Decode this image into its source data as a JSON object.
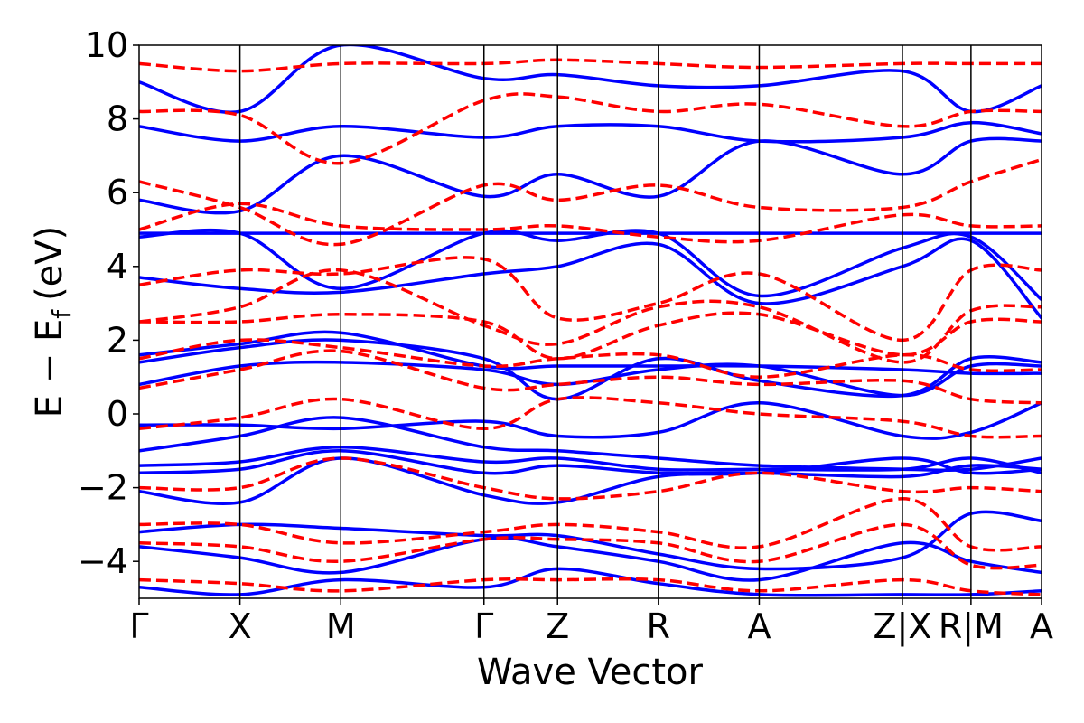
{
  "chart_data": {
    "type": "line",
    "xlabel": "Wave Vector",
    "ylabel": "E − E",
    "ylabel_sub": "f",
    "ylabel_unit": "(eV)",
    "ylim": [
      -5,
      10
    ],
    "yticks": [
      {
        "value": 10,
        "label": "10"
      },
      {
        "value": 8,
        "label": "8"
      },
      {
        "value": 6,
        "label": "6"
      },
      {
        "value": 4,
        "label": "4"
      },
      {
        "value": 2,
        "label": "2"
      },
      {
        "value": 0,
        "label": "0"
      },
      {
        "value": -2,
        "label": "−2"
      },
      {
        "value": -4,
        "label": "−4"
      }
    ],
    "kpoints": [
      {
        "label": "Γ",
        "pos": 0.0
      },
      {
        "label": "X",
        "pos": 1.0
      },
      {
        "label": "M",
        "pos": 2.0
      },
      {
        "label": "Γ",
        "pos": 3.42
      },
      {
        "label": "Z",
        "pos": 4.15
      },
      {
        "label": "R",
        "pos": 5.15
      },
      {
        "label": "A",
        "pos": 6.15
      },
      {
        "label": "Z|X",
        "pos": 7.57
      },
      {
        "label": "R|M",
        "pos": 8.25
      },
      {
        "label": "A",
        "pos": 8.95
      }
    ],
    "grid": false,
    "series": [
      {
        "style": "solid",
        "color": "#0000ff",
        "bands": [
          [
            -1.0,
            -0.6,
            -0.1,
            -0.9,
            -1.0,
            -1.2,
            -1.4,
            -1.5,
            -1.5,
            -1.2
          ],
          [
            -1.4,
            -1.3,
            -0.9,
            -1.3,
            -1.2,
            -1.5,
            -1.5,
            -1.5,
            -1.2,
            -1.6
          ],
          [
            -1.6,
            -1.5,
            -1.0,
            -1.6,
            -1.4,
            -1.6,
            -1.6,
            -1.7,
            -1.4,
            -1.5
          ],
          [
            -2.1,
            -2.4,
            -1.2,
            -2.2,
            -2.4,
            -1.7,
            -1.6,
            -1.2,
            -1.6,
            -1.5
          ],
          [
            -3.2,
            -3.0,
            -3.1,
            -3.3,
            -3.3,
            -3.8,
            -4.2,
            -3.9,
            -2.7,
            -2.9
          ],
          [
            -3.6,
            -3.9,
            -4.3,
            -3.4,
            -3.6,
            -4.0,
            -4.5,
            -3.5,
            -4.0,
            -4.3
          ],
          [
            -4.7,
            -4.9,
            -4.5,
            -4.7,
            -4.2,
            -4.6,
            -4.9,
            -4.9,
            -4.9,
            -4.8
          ],
          [
            -0.3,
            -0.3,
            -0.4,
            -0.2,
            -0.6,
            -0.5,
            0.3,
            -0.6,
            -0.5,
            0.3
          ],
          [
            0.8,
            1.3,
            1.4,
            1.2,
            0.8,
            1.2,
            1.3,
            0.5,
            1.3,
            1.3
          ],
          [
            1.4,
            1.8,
            2.0,
            1.5,
            0.4,
            1.5,
            0.9,
            0.5,
            1.5,
            1.4
          ],
          [
            1.6,
            1.9,
            2.2,
            1.3,
            1.3,
            1.3,
            1.3,
            1.2,
            1.1,
            1.1
          ],
          [
            3.7,
            3.4,
            3.3,
            3.8,
            4.0,
            4.6,
            3.0,
            4.0,
            4.7,
            2.6
          ],
          [
            4.8,
            4.9,
            3.4,
            4.9,
            4.7,
            4.9,
            3.2,
            4.5,
            4.8,
            3.1
          ],
          [
            4.9,
            4.9,
            4.9,
            4.9,
            4.9,
            4.9,
            4.9,
            4.9,
            4.9,
            4.9
          ],
          [
            5.8,
            5.5,
            7.0,
            5.9,
            6.5,
            5.9,
            7.4,
            6.5,
            7.4,
            7.4
          ],
          [
            7.8,
            7.4,
            7.8,
            7.5,
            7.8,
            7.8,
            7.4,
            7.5,
            7.9,
            7.6
          ],
          [
            9.0,
            8.2,
            10.0,
            9.1,
            9.2,
            8.9,
            8.9,
            9.3,
            8.2,
            8.9
          ]
        ]
      },
      {
        "style": "dashed",
        "color": "#ff0000",
        "bands": [
          [
            -2.0,
            -2.0,
            -1.2,
            -2.0,
            -2.3,
            -2.1,
            -1.6,
            -2.1,
            -2.0,
            -2.1
          ],
          [
            -3.0,
            -3.0,
            -3.5,
            -3.2,
            -3.0,
            -3.2,
            -3.6,
            -2.3,
            -3.6,
            -3.6
          ],
          [
            -3.5,
            -3.6,
            -4.0,
            -3.4,
            -3.4,
            -3.5,
            -4.0,
            -3.0,
            -4.1,
            -4.1
          ],
          [
            -4.5,
            -4.6,
            -4.8,
            -4.5,
            -4.5,
            -4.5,
            -4.8,
            -4.5,
            -4.8,
            -4.9
          ],
          [
            -0.4,
            -0.1,
            0.4,
            -0.4,
            0.4,
            0.3,
            0.0,
            -0.2,
            -0.6,
            -0.6
          ],
          [
            0.7,
            1.2,
            1.7,
            0.7,
            0.8,
            1.0,
            0.8,
            0.9,
            0.4,
            0.3
          ],
          [
            1.5,
            2.0,
            1.8,
            1.3,
            1.5,
            1.6,
            1.0,
            1.6,
            1.2,
            1.2
          ],
          [
            2.5,
            2.5,
            2.7,
            2.5,
            1.5,
            2.4,
            2.7,
            1.6,
            2.5,
            2.5
          ],
          [
            2.5,
            2.9,
            3.9,
            2.4,
            1.9,
            2.9,
            2.9,
            1.4,
            2.8,
            2.9
          ],
          [
            3.5,
            3.9,
            3.8,
            4.2,
            2.6,
            3.0,
            3.8,
            2.0,
            3.9,
            3.9
          ],
          [
            5.0,
            5.7,
            5.1,
            5.0,
            5.1,
            4.8,
            4.7,
            5.4,
            5.1,
            5.1
          ],
          [
            6.3,
            5.6,
            4.6,
            6.2,
            5.8,
            6.2,
            5.6,
            5.6,
            6.3,
            6.9
          ],
          [
            8.2,
            8.1,
            6.8,
            8.5,
            8.6,
            8.2,
            8.4,
            7.8,
            8.2,
            8.2
          ],
          [
            9.5,
            9.3,
            9.5,
            9.5,
            9.6,
            9.5,
            9.4,
            9.5,
            9.5,
            9.5
          ]
        ]
      }
    ]
  }
}
